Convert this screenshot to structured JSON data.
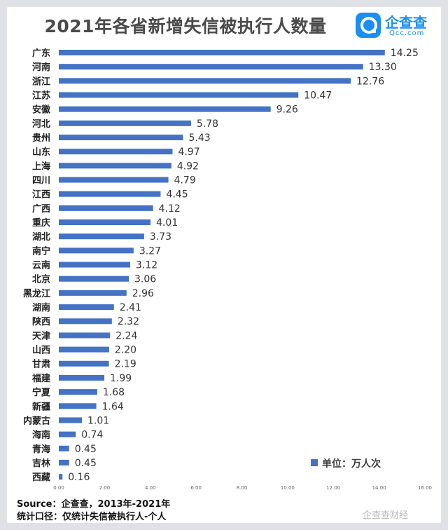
{
  "title": "2021年各省新增失信被执行人数量",
  "logo": {
    "cn": "企查查",
    "en": "Qcc.com"
  },
  "legend": "单位：万人次",
  "footer": {
    "source": "Source：企查查，2013年-2021年",
    "note": "统计口径：仅统计失信被执行人-个人"
  },
  "watermark": "企查查财经",
  "colors": {
    "bar": "#4472c4",
    "background": "#ffffff",
    "title": "#4a4a4a"
  },
  "chart_data": {
    "type": "bar",
    "orientation": "horizontal",
    "categories": [
      "广东",
      "河南",
      "浙江",
      "江苏",
      "安徽",
      "河北",
      "贵州",
      "山东",
      "上海",
      "四川",
      "江西",
      "广西",
      "重庆",
      "湖北",
      "南宁",
      "云南",
      "北京",
      "黑龙江",
      "湖南",
      "陕西",
      "天津",
      "山西",
      "甘肃",
      "福建",
      "宁夏",
      "新疆",
      "内蒙古",
      "海南",
      "青海",
      "吉林",
      "西藏"
    ],
    "values": [
      14.25,
      13.3,
      12.76,
      10.47,
      9.26,
      5.78,
      5.43,
      4.97,
      4.92,
      4.79,
      4.45,
      4.12,
      4.01,
      3.73,
      3.27,
      3.12,
      3.06,
      2.96,
      2.41,
      2.32,
      2.24,
      2.2,
      2.19,
      1.99,
      1.68,
      1.64,
      1.01,
      0.74,
      0.45,
      0.45,
      0.16
    ],
    "value_labels": [
      "14.25",
      "13.30",
      "12.76",
      "10.47",
      "9.26",
      "5.78",
      "5.43",
      "4.97",
      "4.92",
      "4.79",
      "4.45",
      "4.12",
      "4.01",
      "3.73",
      "3.27",
      "3.12",
      "3.06",
      "2.96",
      "2.41",
      "2.32",
      "2.24",
      "2.20",
      "2.19",
      "1.99",
      "1.68",
      "1.64",
      "1.01",
      "0.74",
      "0.45",
      "0.45",
      "0.16"
    ],
    "xlim": [
      0,
      16
    ],
    "xticks": [
      "0.00",
      "2.00",
      "4.00",
      "6.00",
      "8.00",
      "10.00",
      "12.00",
      "14.00",
      "16.00"
    ],
    "grid": false,
    "legend_position": "bottom-right"
  }
}
